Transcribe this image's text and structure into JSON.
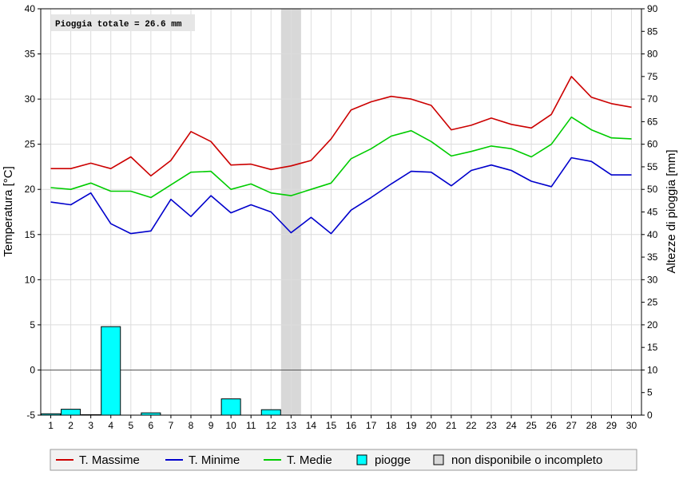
{
  "chart_data": {
    "type": "line",
    "annotation": "Pioggia totale = 26.6 mm",
    "categories": [
      "1",
      "2",
      "3",
      "4",
      "5",
      "6",
      "7",
      "8",
      "9",
      "10",
      "11",
      "12",
      "13",
      "14",
      "15",
      "16",
      "17",
      "18",
      "19",
      "20",
      "21",
      "22",
      "23",
      "24",
      "25",
      "26",
      "27",
      "28",
      "29",
      "30"
    ],
    "ylabel": "Temperatura [°C]",
    "y2label": "Altezze di pioggia [mm]",
    "ylim": [
      -5,
      40
    ],
    "y2lim": [
      0,
      90
    ],
    "yticks": [
      "-5",
      "0",
      "5",
      "10",
      "15",
      "20",
      "25",
      "30",
      "35",
      "40"
    ],
    "y2ticks": [
      "0",
      "5",
      "10",
      "15",
      "20",
      "25",
      "30",
      "35",
      "40",
      "45",
      "50",
      "55",
      "60",
      "65",
      "70",
      "75",
      "80",
      "85",
      "90"
    ],
    "grid": true,
    "legend_position": "bottom",
    "unavailable_days": [
      "13"
    ],
    "series": [
      {
        "name": "T. Massime",
        "color": "#cc0000",
        "values": [
          22.3,
          22.3,
          22.9,
          22.3,
          23.6,
          21.5,
          23.2,
          26.4,
          25.3,
          22.7,
          22.8,
          22.2,
          22.6,
          23.2,
          25.6,
          28.8,
          29.7,
          30.3,
          30.0,
          29.3,
          26.6,
          27.1,
          27.9,
          27.2,
          26.8,
          28.3,
          32.5,
          30.2,
          29.5,
          29.1
        ]
      },
      {
        "name": "T. Minime",
        "color": "#0000cc",
        "values": [
          18.6,
          18.3,
          19.6,
          16.2,
          15.1,
          15.4,
          18.9,
          17.0,
          19.3,
          17.4,
          18.3,
          17.5,
          15.2,
          16.9,
          15.1,
          17.7,
          19.1,
          20.6,
          22.0,
          21.9,
          20.4,
          22.1,
          22.7,
          22.1,
          20.9,
          20.3,
          23.5,
          23.1,
          21.6,
          21.6
        ]
      },
      {
        "name": "T. Medie",
        "color": "#00cc00",
        "values": [
          20.2,
          20.0,
          20.7,
          19.8,
          19.8,
          19.1,
          20.5,
          21.9,
          22.0,
          20.0,
          20.6,
          19.6,
          19.3,
          20.0,
          20.7,
          23.4,
          24.5,
          25.9,
          26.5,
          25.3,
          23.7,
          24.2,
          24.8,
          24.5,
          23.6,
          25.0,
          28.0,
          26.6,
          25.7,
          25.6
        ]
      },
      {
        "name": "piogge",
        "color": "#00ffff",
        "type": "bar",
        "axis": "right",
        "values": [
          0.3,
          1.3,
          0.1,
          19.6,
          0,
          0.5,
          0,
          0,
          0,
          3.6,
          0,
          1.2,
          0,
          0,
          0,
          0,
          0,
          0,
          0,
          0,
          0,
          0,
          0,
          0,
          0,
          0,
          0,
          0,
          0,
          0
        ]
      }
    ],
    "legend": [
      {
        "name": "T. Massime",
        "symbol": "line",
        "color": "#cc0000"
      },
      {
        "name": "T. Minime",
        "symbol": "line",
        "color": "#0000cc"
      },
      {
        "name": "T. Medie",
        "symbol": "line",
        "color": "#00cc00"
      },
      {
        "name": "piogge",
        "symbol": "box",
        "color": "#00ffff"
      },
      {
        "name": "non disponibile o incompleto",
        "symbol": "box",
        "color": "#d8d8d8"
      }
    ]
  }
}
